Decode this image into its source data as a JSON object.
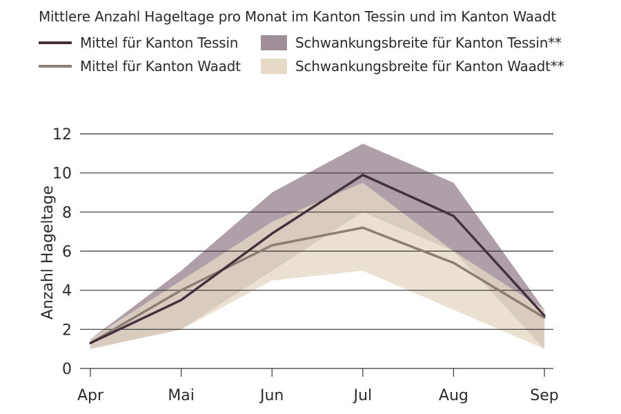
{
  "colors": {
    "tessin_line": "#45313c",
    "waadt_line": "#8c7e72",
    "tessin_band": "#a08e99",
    "waadt_band": "#e6d9c5",
    "grid": "#333333"
  },
  "chart_data": {
    "type": "area",
    "title": "Mittlere Anzahl Hageltage pro Monat im Kanton Tessin und im Kanton Waadt",
    "xlabel": "",
    "ylabel": "Anzahl Hageltage",
    "categories": [
      "Apr",
      "Mai",
      "Jun",
      "Jul",
      "Aug",
      "Sep"
    ],
    "yticks": [
      0,
      2,
      4,
      6,
      8,
      10,
      12
    ],
    "ylim": [
      0,
      12
    ],
    "grid": true,
    "legend": "top-left",
    "series": [
      {
        "name": "Mittel für Kanton Tessin",
        "kind": "line",
        "values": [
          1.3,
          3.5,
          6.9,
          9.9,
          7.8,
          2.7
        ]
      },
      {
        "name": "Mittel für Kanton Waadt",
        "kind": "line",
        "values": [
          1.3,
          4.0,
          6.3,
          7.2,
          5.4,
          2.6
        ]
      },
      {
        "name": "Schwankungsbreite für Kanton Tessin**",
        "kind": "band",
        "lower": [
          1.0,
          2.0,
          5.0,
          8.0,
          6.0,
          1.0
        ],
        "upper": [
          1.5,
          5.0,
          9.0,
          11.5,
          9.5,
          3.0
        ]
      },
      {
        "name": "Schwankungsbreite für Kanton Waadt**",
        "kind": "band",
        "lower": [
          1.0,
          2.0,
          4.5,
          5.0,
          3.0,
          1.0
        ],
        "upper": [
          1.5,
          4.5,
          7.5,
          9.5,
          6.0,
          3.0
        ]
      }
    ]
  }
}
